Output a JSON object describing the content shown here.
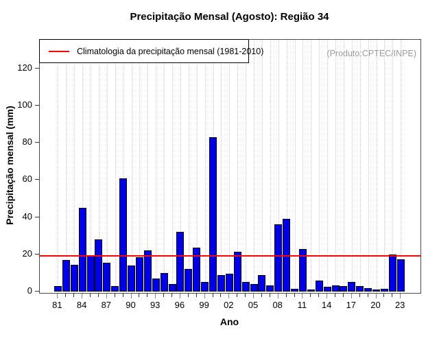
{
  "title": "Precipitação Mensal (Agosto): Região 34",
  "watermark": "(Produto:CPTEC/INPE)",
  "legend": {
    "label": "Climatologia da precipitação mensal (1981-2010)",
    "line_color": "#ff0000"
  },
  "chart_data": {
    "type": "bar",
    "title": "Precipitação Mensal (Agosto): Região 34",
    "xlabel": "Ano",
    "ylabel": "Precipitação mensal (mm)",
    "ylim": [
      0,
      130
    ],
    "yticks": [
      0,
      20,
      40,
      60,
      80,
      100,
      120
    ],
    "grid": "vertical-dotted",
    "legend_position": "top-left",
    "bar_color": "#0000e6",
    "categories": [
      "81",
      "82",
      "83",
      "84",
      "85",
      "86",
      "87",
      "88",
      "89",
      "90",
      "91",
      "92",
      "93",
      "94",
      "95",
      "96",
      "97",
      "98",
      "99",
      "00",
      "01",
      "02",
      "03",
      "04",
      "05",
      "06",
      "07",
      "08",
      "09",
      "10",
      "11",
      "12",
      "13",
      "14",
      "15",
      "16",
      "17",
      "18",
      "19",
      "20",
      "21",
      "22",
      "23"
    ],
    "x_tick_labels": [
      "81",
      "84",
      "87",
      "90",
      "93",
      "96",
      "99",
      "02",
      "05",
      "08",
      "11",
      "14",
      "17",
      "20",
      "23"
    ],
    "values": [
      3,
      17,
      14.5,
      45,
      19.5,
      28,
      15.5,
      3,
      61,
      14,
      18.5,
      22,
      7,
      10,
      4,
      32,
      12,
      23.5,
      5,
      83,
      9,
      9.5,
      21.5,
      5,
      4,
      9,
      3.5,
      36,
      39,
      1.5,
      23,
      1,
      6,
      2.5,
      3.5,
      3,
      5,
      3,
      2,
      1,
      1.5,
      20,
      17.5
    ],
    "reference_line": {
      "label": "Climatologia da precipitação mensal (1981-2010)",
      "value": 19.2,
      "color": "#ff0000"
    }
  }
}
